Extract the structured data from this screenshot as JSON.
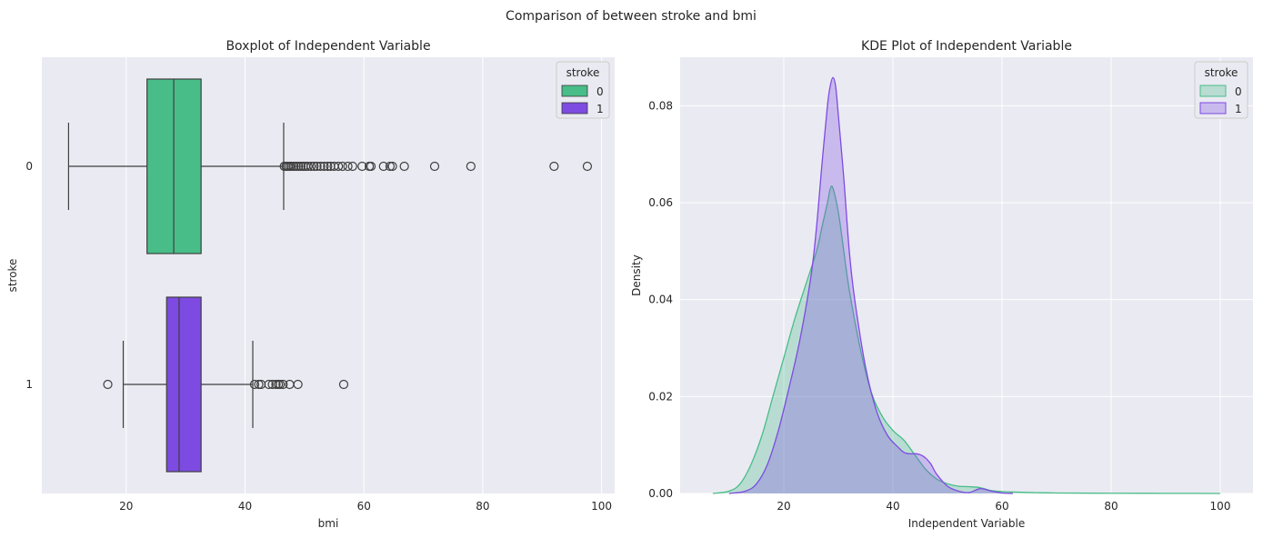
{
  "suptitle": "Comparison of between stroke and bmi",
  "chart_data": [
    {
      "type": "box",
      "orientation": "horizontal",
      "title": "Boxplot of Independent Variable",
      "xlabel": "bmi",
      "ylabel": "stroke",
      "xlim": [
        5.8,
        102.2
      ],
      "xticks": [
        20,
        40,
        60,
        80,
        100
      ],
      "grid": true,
      "legend": {
        "title": "stroke",
        "position": "top-right"
      },
      "groups": [
        {
          "name": "0",
          "color": "#48BD88",
          "whisker_low": 10.3,
          "q1": 23.5,
          "median": 28.0,
          "q3": 32.6,
          "whisker_high": 46.5,
          "outliers": [
            46.6,
            46.9,
            47.2,
            47.5,
            47.8,
            48.2,
            48.6,
            49.0,
            49.4,
            49.8,
            50.2,
            50.6,
            51.1,
            51.6,
            52.1,
            52.7,
            53.3,
            53.9,
            54.4,
            55.0,
            55.7,
            56.4,
            57.3,
            58.1,
            59.7,
            60.9,
            61.2,
            63.3,
            64.4,
            64.8,
            66.8,
            71.9,
            78.0,
            92.0,
            97.6
          ]
        },
        {
          "name": "1",
          "color": "#7D4BE1",
          "whisker_low": 19.5,
          "q1": 26.8,
          "median": 28.9,
          "q3": 32.6,
          "whisker_high": 41.3,
          "outliers": [
            16.9,
            41.6,
            42.3,
            42.7,
            44.0,
            44.6,
            45.2,
            45.6,
            45.9,
            46.4,
            47.5,
            48.9,
            56.6
          ]
        }
      ]
    },
    {
      "type": "area",
      "title": "KDE Plot of Independent Variable",
      "xlabel": "Independent Variable",
      "ylabel": "Density",
      "xlim": [
        1.0,
        106.0
      ],
      "ylim": [
        0,
        0.09
      ],
      "xticks": [
        20,
        40,
        60,
        80,
        100
      ],
      "yticks": [
        0.0,
        0.02,
        0.04,
        0.06,
        0.08
      ],
      "ytick_labels": [
        "0.00",
        "0.02",
        "0.04",
        "0.06",
        "0.08"
      ],
      "grid": true,
      "legend": {
        "title": "stroke",
        "position": "top-right"
      },
      "series": [
        {
          "name": "0",
          "color": "#48BD88",
          "x": [
            7,
            10,
            12,
            14,
            16,
            18,
            20,
            22,
            24,
            26,
            27,
            28,
            28.5,
            29,
            30,
            31,
            32,
            34,
            36,
            38,
            40,
            42,
            44,
            46,
            48,
            50,
            52,
            54,
            56,
            58,
            60,
            62,
            65,
            70,
            80,
            90,
            100
          ],
          "y": [
            0,
            0.0005,
            0.002,
            0.006,
            0.012,
            0.02,
            0.028,
            0.036,
            0.043,
            0.05,
            0.055,
            0.06,
            0.0628,
            0.063,
            0.058,
            0.05,
            0.042,
            0.03,
            0.021,
            0.016,
            0.013,
            0.011,
            0.008,
            0.005,
            0.003,
            0.002,
            0.0015,
            0.0014,
            0.0012,
            0.0006,
            0.0004,
            0.0003,
            0.0002,
            0.0001,
            5e-05,
            3e-05,
            0
          ]
        },
        {
          "name": "1",
          "color": "#7D4BE1",
          "x": [
            10,
            13,
            15,
            17,
            19,
            21,
            23,
            25,
            26,
            27,
            28,
            28.5,
            29,
            29.5,
            30,
            31,
            32,
            33,
            35,
            37,
            39,
            41,
            42,
            43,
            44,
            45,
            46,
            47,
            48,
            50,
            52,
            54,
            56,
            58,
            60,
            62
          ],
          "y": [
            0,
            0.0005,
            0.002,
            0.006,
            0.013,
            0.022,
            0.032,
            0.045,
            0.055,
            0.068,
            0.08,
            0.084,
            0.0858,
            0.084,
            0.078,
            0.065,
            0.05,
            0.04,
            0.026,
            0.017,
            0.012,
            0.0095,
            0.0085,
            0.0082,
            0.0082,
            0.008,
            0.0073,
            0.006,
            0.004,
            0.0015,
            0.0005,
            0.0002,
            0.001,
            0.0005,
            0.0001,
            0
          ]
        }
      ]
    }
  ]
}
